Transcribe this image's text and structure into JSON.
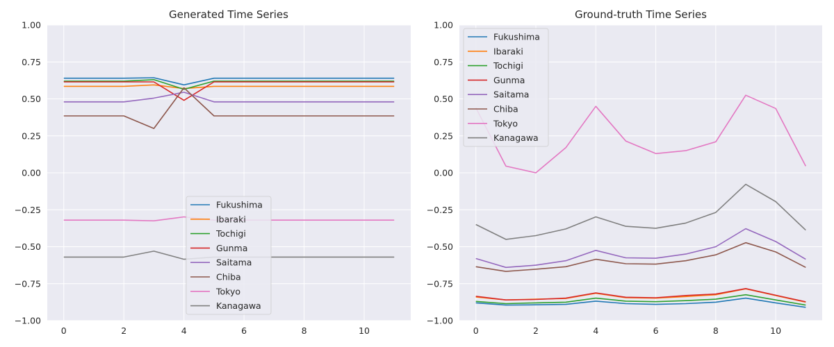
{
  "chart_data": [
    {
      "type": "line",
      "title": "Generated Time Series",
      "xlabel": "",
      "ylabel": "",
      "xlim": [
        -0.55,
        11.55
      ],
      "ylim": [
        -1.0,
        1.0
      ],
      "xticks": [
        0,
        2,
        4,
        6,
        8,
        10
      ],
      "yticks": [
        -1.0,
        -0.75,
        -0.5,
        -0.25,
        0.0,
        0.25,
        0.5,
        0.75,
        1.0
      ],
      "ytick_labels": [
        "−1.00",
        "−0.75",
        "−0.50",
        "−0.25",
        "0.00",
        "0.25",
        "0.50",
        "0.75",
        "1.00"
      ],
      "grid": true,
      "legend_position": "lower-center",
      "x": [
        0,
        1,
        2,
        3,
        4,
        5,
        6,
        7,
        8,
        9,
        10,
        11
      ],
      "series": [
        {
          "name": "Fukushima",
          "color": "#1f77b4",
          "values": [
            0.64,
            0.64,
            0.64,
            0.643,
            0.595,
            0.64,
            0.64,
            0.64,
            0.64,
            0.64,
            0.64,
            0.64
          ]
        },
        {
          "name": "Ibaraki",
          "color": "#ff7f0e",
          "values": [
            0.585,
            0.585,
            0.585,
            0.595,
            0.57,
            0.585,
            0.585,
            0.585,
            0.585,
            0.585,
            0.585,
            0.585
          ]
        },
        {
          "name": "Tochigi",
          "color": "#2ca02c",
          "values": [
            0.62,
            0.62,
            0.62,
            0.63,
            0.565,
            0.62,
            0.62,
            0.62,
            0.62,
            0.62,
            0.62,
            0.62
          ]
        },
        {
          "name": "Gunma",
          "color": "#d62728",
          "values": [
            0.615,
            0.615,
            0.615,
            0.615,
            0.49,
            0.615,
            0.615,
            0.615,
            0.615,
            0.615,
            0.615,
            0.615
          ]
        },
        {
          "name": "Saitama",
          "color": "#9467bd",
          "values": [
            0.48,
            0.48,
            0.48,
            0.505,
            0.545,
            0.48,
            0.48,
            0.48,
            0.48,
            0.48,
            0.48,
            0.48
          ]
        },
        {
          "name": "Chiba",
          "color": "#8c564b",
          "values": [
            0.385,
            0.385,
            0.385,
            0.3,
            0.575,
            0.385,
            0.385,
            0.385,
            0.385,
            0.385,
            0.385,
            0.385
          ]
        },
        {
          "name": "Tokyo",
          "color": "#e377c2",
          "values": [
            -0.32,
            -0.32,
            -0.32,
            -0.325,
            -0.298,
            -0.32,
            -0.32,
            -0.32,
            -0.32,
            -0.32,
            -0.32,
            -0.32
          ]
        },
        {
          "name": "Kanagawa",
          "color": "#7f7f7f",
          "values": [
            -0.57,
            -0.57,
            -0.57,
            -0.53,
            -0.585,
            -0.57,
            -0.57,
            -0.57,
            -0.57,
            -0.57,
            -0.57,
            -0.57
          ]
        }
      ]
    },
    {
      "type": "line",
      "title": "Ground-truth Time Series",
      "xlabel": "",
      "ylabel": "",
      "xlim": [
        -0.55,
        11.55
      ],
      "ylim": [
        -1.0,
        1.0
      ],
      "xticks": [
        0,
        2,
        4,
        6,
        8,
        10
      ],
      "yticks": [
        -1.0,
        -0.75,
        -0.5,
        -0.25,
        0.0,
        0.25,
        0.5,
        0.75,
        1.0
      ],
      "ytick_labels": [
        "−1.00",
        "−0.75",
        "−0.50",
        "−0.25",
        "0.00",
        "0.25",
        "0.50",
        "0.75",
        "1.00"
      ],
      "grid": true,
      "legend_position": "upper-left",
      "x": [
        0,
        1,
        2,
        3,
        4,
        5,
        6,
        7,
        8,
        9,
        10,
        11
      ],
      "series": [
        {
          "name": "Fukushima",
          "color": "#1f77b4",
          "values": [
            -0.88,
            -0.895,
            -0.893,
            -0.89,
            -0.868,
            -0.885,
            -0.89,
            -0.885,
            -0.875,
            -0.848,
            -0.88,
            -0.91
          ]
        },
        {
          "name": "Ibaraki",
          "color": "#ff7f0e",
          "values": [
            -0.84,
            -0.86,
            -0.855,
            -0.85,
            -0.815,
            -0.845,
            -0.848,
            -0.837,
            -0.825,
            -0.785,
            -0.83,
            -0.875
          ]
        },
        {
          "name": "Tochigi",
          "color": "#2ca02c",
          "values": [
            -0.87,
            -0.885,
            -0.88,
            -0.875,
            -0.848,
            -0.868,
            -0.872,
            -0.865,
            -0.855,
            -0.825,
            -0.86,
            -0.895
          ]
        },
        {
          "name": "Gunma",
          "color": "#d62728",
          "values": [
            -0.835,
            -0.86,
            -0.857,
            -0.848,
            -0.812,
            -0.842,
            -0.845,
            -0.83,
            -0.82,
            -0.783,
            -0.828,
            -0.873
          ]
        },
        {
          "name": "Saitama",
          "color": "#9467bd",
          "values": [
            -0.58,
            -0.64,
            -0.625,
            -0.595,
            -0.525,
            -0.575,
            -0.578,
            -0.55,
            -0.5,
            -0.378,
            -0.465,
            -0.585
          ]
        },
        {
          "name": "Chiba",
          "color": "#8c564b",
          "values": [
            -0.635,
            -0.667,
            -0.652,
            -0.635,
            -0.585,
            -0.615,
            -0.618,
            -0.595,
            -0.555,
            -0.473,
            -0.535,
            -0.64
          ]
        },
        {
          "name": "Tokyo",
          "color": "#e377c2",
          "values": [
            0.44,
            0.045,
            0.0,
            0.17,
            0.45,
            0.215,
            0.13,
            0.15,
            0.21,
            0.525,
            0.435,
            0.045
          ]
        },
        {
          "name": "Kanagawa",
          "color": "#7f7f7f",
          "values": [
            -0.35,
            -0.45,
            -0.425,
            -0.38,
            -0.298,
            -0.362,
            -0.375,
            -0.34,
            -0.268,
            -0.078,
            -0.195,
            -0.388
          ]
        }
      ]
    }
  ]
}
